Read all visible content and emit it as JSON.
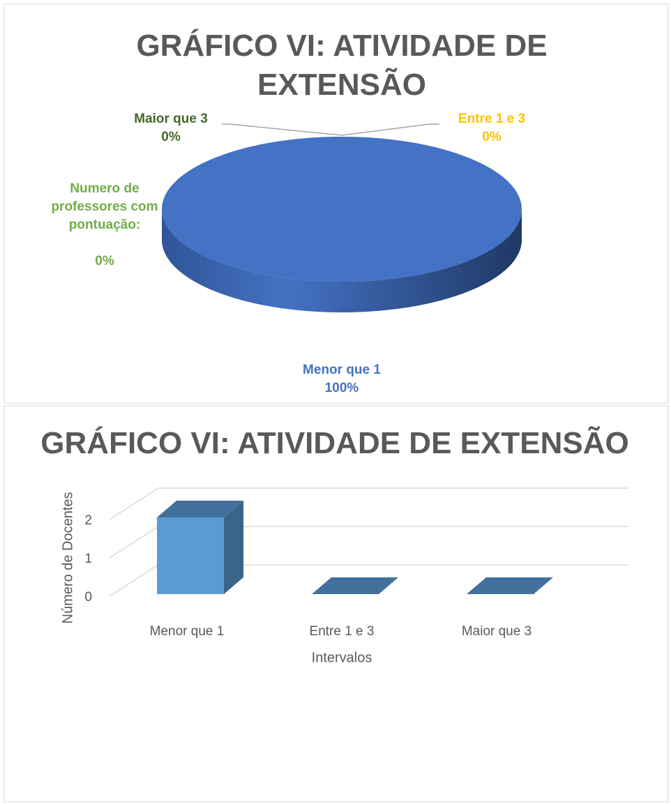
{
  "chart_data": [
    {
      "type": "pie",
      "title": "GRÁFICO VI: ATIVIDADE DE EXTENSÃO",
      "categories": [
        "Numero de professores com pontuação:",
        "Menor que 1",
        "Entre 1 e 3",
        "Maior que 3"
      ],
      "values": [
        0,
        100,
        0,
        0
      ],
      "value_labels": [
        "0%",
        "100%",
        "0%",
        "0%"
      ],
      "colors": [
        "#70ad47",
        "#4472c4",
        "#ffc000",
        "#43682b"
      ]
    },
    {
      "type": "bar",
      "title": "GRÁFICO VI: ATIVIDADE DE EXTENSÃO",
      "categories": [
        "Menor que 1",
        "Entre 1 e 3",
        "Maior que 3"
      ],
      "values": [
        2,
        0,
        0
      ],
      "color": "#5b9bd5",
      "ylim": [
        0,
        2
      ],
      "yticks": [
        0,
        1,
        2
      ],
      "grid": true,
      "xlabel": "Intervalos",
      "ylabel": "Número de Docentes"
    }
  ]
}
